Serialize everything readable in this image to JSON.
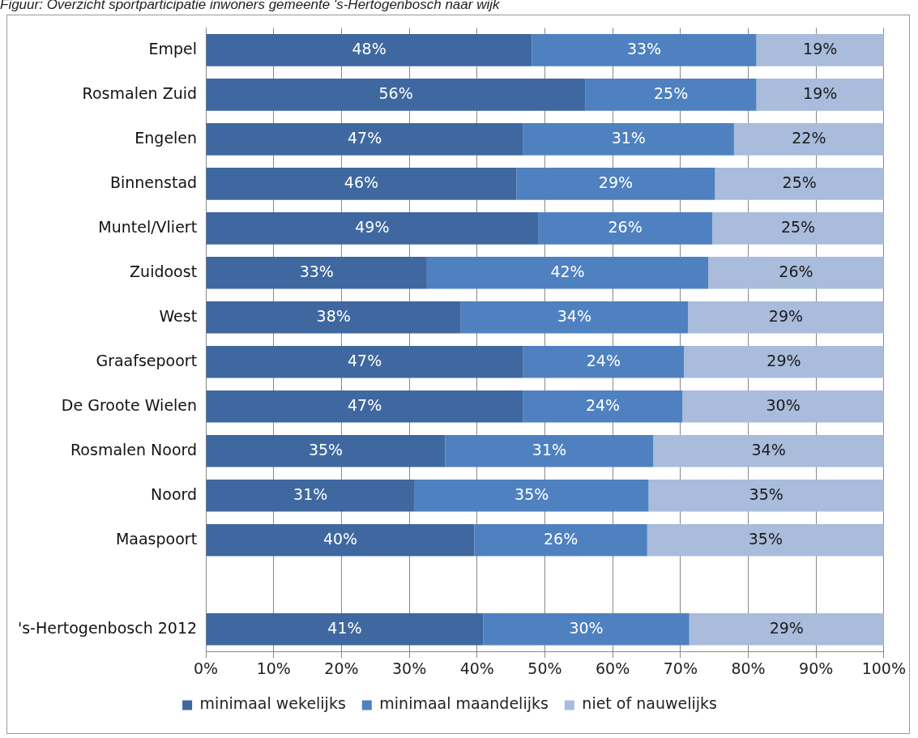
{
  "chart_data": {
    "type": "bar",
    "orientation": "horizontal",
    "stacked": true,
    "title": "Figuur: Overzicht sportparticipatie inwoners gemeente 's-Hertogenbosch naar wijk",
    "categories": [
      "Empel",
      "Rosmalen Zuid",
      "Engelen",
      "Binnenstad",
      "Muntel/Vliert",
      "Zuidoost",
      "West",
      "Graafsepoort",
      "De Groote Wielen",
      "Rosmalen Noord",
      "Noord",
      "Maaspoort",
      null,
      "'s-Hertogenbosch 2012"
    ],
    "series": [
      {
        "name": "minimaal wekelijks",
        "color": "#3f68a0",
        "values": [
          48.1,
          56.0,
          46.8,
          45.8,
          49.0,
          32.6,
          37.6,
          46.8,
          46.8,
          35.3,
          30.8,
          39.6,
          null,
          40.9
        ],
        "value_labels": [
          "48%",
          "56%",
          "47%",
          "46%",
          "49%",
          "33%",
          "38%",
          "47%",
          "47%",
          "35%",
          "31%",
          "40%",
          null,
          "41%"
        ]
      },
      {
        "name": "minimaal maandelijks",
        "color": "#4f81c0",
        "values": [
          33.1,
          25.2,
          31.1,
          29.3,
          25.7,
          41.5,
          33.5,
          23.7,
          23.5,
          30.7,
          34.5,
          25.5,
          null,
          30.4
        ],
        "value_labels": [
          "33%",
          "25%",
          "31%",
          "29%",
          "26%",
          "42%",
          "34%",
          "24%",
          "24%",
          "31%",
          "35%",
          "26%",
          null,
          "30%"
        ]
      },
      {
        "name": "niet of nauwelijks",
        "color": "#a9bcdc",
        "values": [
          18.8,
          18.8,
          22.1,
          24.9,
          25.3,
          25.9,
          28.9,
          29.5,
          29.7,
          34.0,
          34.7,
          34.9,
          null,
          28.7
        ],
        "value_labels": [
          "19%",
          "19%",
          "22%",
          "25%",
          "25%",
          "26%",
          "29%",
          "29%",
          "30%",
          "34%",
          "35%",
          "35%",
          null,
          "29%"
        ]
      }
    ],
    "xlim": [
      0,
      100
    ],
    "xticks": [
      {
        "value": 0,
        "label": "0%"
      },
      {
        "value": 10,
        "label": "10%"
      },
      {
        "value": 20,
        "label": "20%"
      },
      {
        "value": 30,
        "label": "30%"
      },
      {
        "value": 40,
        "label": "40%"
      },
      {
        "value": 50,
        "label": "50%"
      },
      {
        "value": 60,
        "label": "60%"
      },
      {
        "value": 70,
        "label": "70%"
      },
      {
        "value": 80,
        "label": "80%"
      },
      {
        "value": 90,
        "label": "90%"
      },
      {
        "value": 100,
        "label": "100%"
      }
    ],
    "grid": "x",
    "legend": "bottom"
  }
}
